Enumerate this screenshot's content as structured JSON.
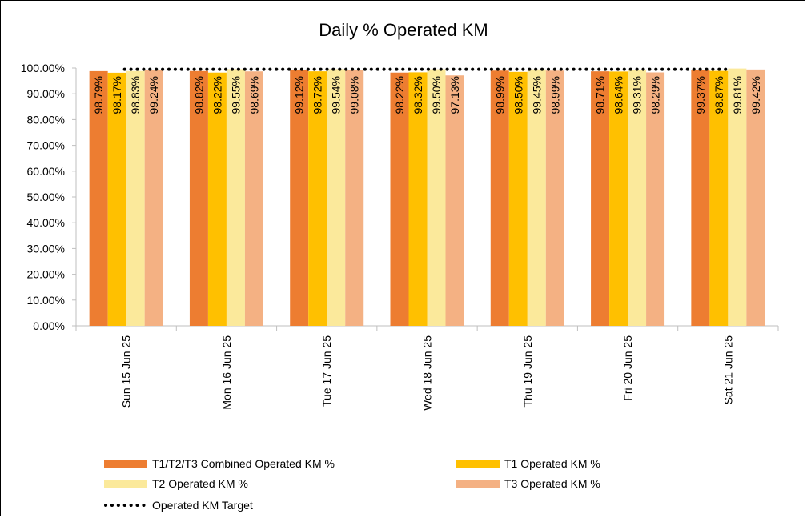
{
  "chart_data": {
    "type": "bar",
    "title": "Daily % Operated KM",
    "xlabel": "",
    "ylabel": "",
    "ylim": [
      0,
      100
    ],
    "y_ticks": [
      "0.00%",
      "10.00%",
      "20.00%",
      "30.00%",
      "40.00%",
      "50.00%",
      "60.00%",
      "70.00%",
      "80.00%",
      "90.00%",
      "100.00%"
    ],
    "categories": [
      "Sun 15 Jun 25",
      "Mon 16 Jun 25",
      "Tue 17 Jun 25",
      "Wed 18 Jun 25",
      "Thu 19 Jun 25",
      "Fri 20 Jun 25",
      "Sat 21 Jun 25"
    ],
    "series": [
      {
        "name": "T1/T2/T3 Combined Operated KM %",
        "color": "#ED7D31",
        "values": [
          98.79,
          98.82,
          99.12,
          98.22,
          98.99,
          98.71,
          99.37
        ],
        "labels": [
          "98.79%",
          "98.82%",
          "99.12%",
          "98.22%",
          "98.99%",
          "98.71%",
          "99.37%"
        ]
      },
      {
        "name": "T1 Operated KM %",
        "color": "#FFC000",
        "values": [
          98.17,
          98.22,
          98.72,
          98.32,
          98.5,
          98.64,
          98.87
        ],
        "labels": [
          "98.17%",
          "98.22%",
          "98.72%",
          "98.32%",
          "98.50%",
          "98.64%",
          "98.87%"
        ]
      },
      {
        "name": "T2 Operated KM %",
        "color": "#FBE99B",
        "values": [
          98.83,
          99.55,
          99.54,
          99.5,
          99.45,
          99.31,
          99.81
        ],
        "labels": [
          "98.83%",
          "99.55%",
          "99.54%",
          "99.50%",
          "99.45%",
          "99.31%",
          "99.81%"
        ]
      },
      {
        "name": "T3 Operated KM %",
        "color": "#F4B183",
        "values": [
          99.24,
          98.69,
          99.08,
          97.13,
          98.99,
          98.29,
          99.42
        ],
        "labels": [
          "99.24%",
          "98.69%",
          "99.08%",
          "97.13%",
          "98.99%",
          "98.29%",
          "99.42%"
        ]
      }
    ],
    "target_line": {
      "name": "Operated KM Target",
      "color": "#000000",
      "value": 99.5
    },
    "grid": false,
    "legend_position": "bottom"
  }
}
